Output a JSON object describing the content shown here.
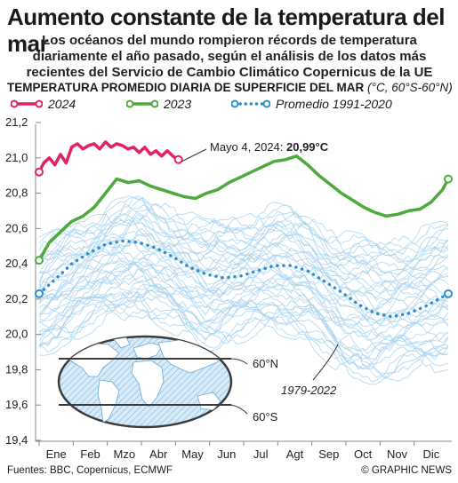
{
  "header": {
    "title": "Aumento constante de la temperatura del mar",
    "subtitle": "Los océanos del mundo rompieron récords de temperatura diariamente el año pasado, según el análisis de los datos más recientes del Servicio de Cambio Climático Copernicus de la UE"
  },
  "chart_heading": {
    "main": "TEMPERATURA PROMEDIO DIARIA DE SUPERFICIE DEL MAR",
    "unit": "(°C, 60°S-60°N)"
  },
  "legend": {
    "y2024": "2024",
    "y2023": "2023",
    "avg": "Promedio 1991-2020"
  },
  "colors": {
    "y2024": "#e0245e",
    "y2023": "#4cab3a",
    "avg": "#2c8fc9",
    "history": "#a9d3ee"
  },
  "annotations": {
    "record": "Mayo 4, 2024: ",
    "record_value": "20,99°C",
    "history_label": "1979-2022",
    "lat_north": "60°N",
    "lat_south": "60°S"
  },
  "footer": {
    "source": "Fuentes: BBC, Copernicus, ECMWF",
    "credit": "© GRAPHIC NEWS"
  },
  "chart_data": {
    "type": "line",
    "title": "TEMPERATURA PROMEDIO DIARIA DE SUPERFICIE DEL MAR",
    "ylabel": "°C, 60°S-60°N",
    "x_ticks": [
      "Ene",
      "Feb",
      "Mzo",
      "Abr",
      "May",
      "Jun",
      "Jul",
      "Agt",
      "Sep",
      "Oct",
      "Nov",
      "Dic"
    ],
    "y_ticks": [
      "21,2",
      "21,0",
      "20,8",
      "20,6",
      "20,4",
      "20,2",
      "20,0",
      "19,8",
      "19,6",
      "19,4"
    ],
    "ylim": [
      19.4,
      21.2
    ],
    "grid": false,
    "legend_position": "top",
    "series": [
      {
        "name": "2024",
        "x": [
          1,
          5,
          10,
          15,
          20,
          25,
          30,
          35,
          40,
          45,
          50,
          55,
          60,
          65,
          70,
          75,
          80,
          85,
          90,
          95,
          100,
          105,
          110,
          115,
          120,
          125
        ],
        "values": [
          20.92,
          20.97,
          21.0,
          20.96,
          21.02,
          20.97,
          21.06,
          21.08,
          21.05,
          21.07,
          21.08,
          21.05,
          21.09,
          21.06,
          21.08,
          21.07,
          21.05,
          21.06,
          21.03,
          21.06,
          21.02,
          21.04,
          21.01,
          21.04,
          21.01,
          20.99
        ]
      },
      {
        "name": "2023",
        "x": [
          1,
          10,
          20,
          30,
          40,
          50,
          60,
          70,
          80,
          90,
          100,
          110,
          120,
          130,
          140,
          150,
          160,
          170,
          180,
          190,
          200,
          210,
          220,
          230,
          240,
          250,
          260,
          270,
          280,
          290,
          300,
          310,
          320,
          330,
          340,
          350,
          360,
          365
        ],
        "values": [
          20.42,
          20.52,
          20.58,
          20.64,
          20.67,
          20.72,
          20.8,
          20.88,
          20.86,
          20.87,
          20.84,
          20.82,
          20.8,
          20.78,
          20.77,
          20.8,
          20.82,
          20.86,
          20.89,
          20.92,
          20.95,
          20.98,
          20.99,
          21.01,
          20.96,
          20.9,
          20.85,
          20.8,
          20.76,
          20.72,
          20.69,
          20.67,
          20.68,
          20.7,
          20.71,
          20.75,
          20.82,
          20.88
        ]
      },
      {
        "name": "Promedio 1991-2020",
        "x": [
          1,
          15,
          30,
          45,
          60,
          75,
          90,
          105,
          120,
          135,
          150,
          165,
          180,
          195,
          210,
          225,
          240,
          255,
          270,
          285,
          300,
          315,
          330,
          345,
          365
        ],
        "values": [
          20.23,
          20.31,
          20.4,
          20.46,
          20.51,
          20.53,
          20.52,
          20.49,
          20.44,
          20.38,
          20.34,
          20.32,
          20.33,
          20.36,
          20.39,
          20.39,
          20.36,
          20.3,
          20.24,
          20.17,
          20.12,
          20.1,
          20.12,
          20.16,
          20.23
        ]
      }
    ],
    "history_range": {
      "name": "1979-2022",
      "x": [
        1,
        30,
        60,
        90,
        120,
        150,
        180,
        210,
        240,
        270,
        300,
        330,
        365
      ],
      "low": [
        19.9,
        20.0,
        20.1,
        20.15,
        20.05,
        19.95,
        20.0,
        20.05,
        20.0,
        19.8,
        19.75,
        19.8,
        19.85
      ],
      "high": [
        20.5,
        20.6,
        20.7,
        20.75,
        20.7,
        20.6,
        20.65,
        20.7,
        20.65,
        20.55,
        20.5,
        20.55,
        20.6
      ]
    }
  }
}
